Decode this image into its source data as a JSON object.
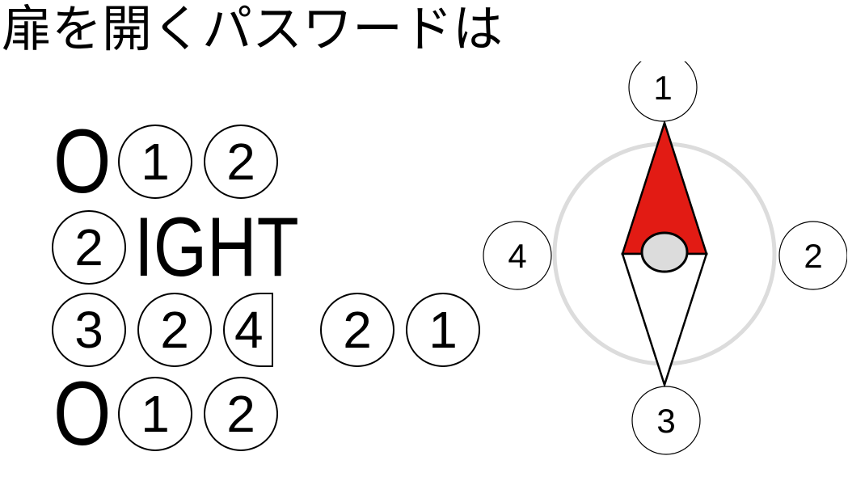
{
  "title": "扉を開くパスワードは",
  "puzzle": {
    "row1": {
      "letter": "O",
      "circles": [
        "1",
        "2"
      ]
    },
    "row2": {
      "circle": "2",
      "letters": "IGHT"
    },
    "row3": {
      "circles_a": [
        "3",
        "2"
      ],
      "partial": "4",
      "circles_b": [
        "2",
        "1"
      ]
    },
    "row4": {
      "letter": "O",
      "circles": [
        "1",
        "2"
      ]
    }
  },
  "compass": {
    "labels": {
      "north": "1",
      "east": "2",
      "south": "3",
      "west": "4"
    },
    "colors": {
      "north_needle": "#e21b14",
      "ring": "#dcdcdc",
      "hub": "#dcdcdc"
    },
    "icon": "compass-icon"
  }
}
